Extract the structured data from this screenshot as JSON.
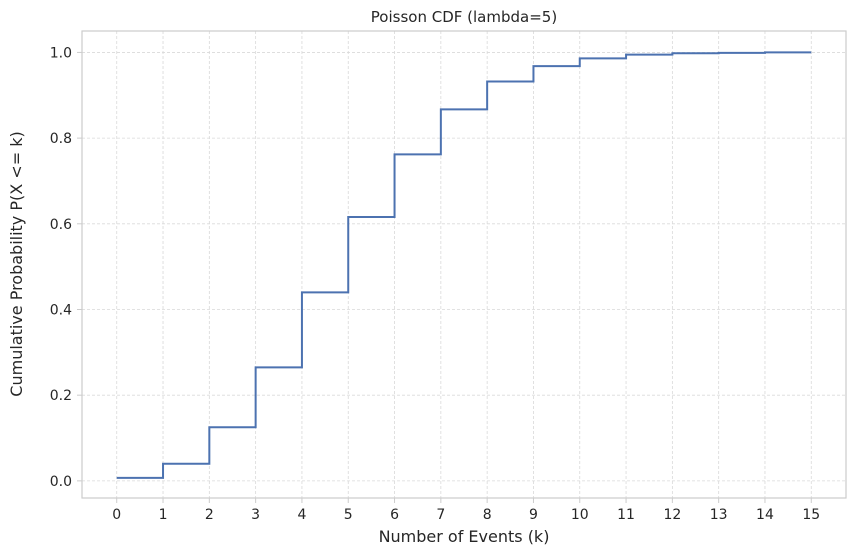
{
  "chart_data": {
    "type": "line",
    "drawstyle": "steps-post",
    "title": "Poisson CDF (lambda=5)",
    "xlabel": "Number of Events (k)",
    "ylabel": "Cumulative Probability P(X <= k)",
    "xlim": [
      -0.75,
      15.75
    ],
    "ylim": [
      -0.04,
      1.05
    ],
    "xticks": [
      0,
      1,
      2,
      3,
      4,
      5,
      6,
      7,
      8,
      9,
      10,
      11,
      12,
      13,
      14,
      15
    ],
    "yticks": [
      0.0,
      0.2,
      0.4,
      0.6,
      0.8,
      1.0
    ],
    "ytick_labels": [
      "0.0",
      "0.2",
      "0.4",
      "0.6",
      "0.8",
      "1.0"
    ],
    "grid": true,
    "color": "#4c72b0",
    "x": [
      0,
      1,
      2,
      3,
      4,
      5,
      6,
      7,
      8,
      9,
      10,
      11,
      12,
      13,
      14,
      15
    ],
    "y": [
      0.007,
      0.04,
      0.125,
      0.265,
      0.44,
      0.616,
      0.762,
      0.867,
      0.932,
      0.968,
      0.986,
      0.995,
      0.998,
      0.999,
      1.0,
      1.0
    ]
  }
}
